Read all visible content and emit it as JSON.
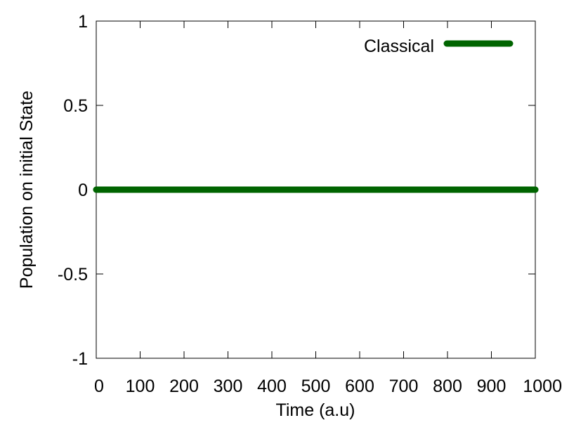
{
  "chart_data": {
    "type": "line",
    "title": "",
    "xlabel": "Time (a.u)",
    "ylabel": "Population on initial State",
    "xlim": [
      0,
      1000
    ],
    "ylim": [
      -1,
      1
    ],
    "xticks": [
      0,
      100,
      200,
      300,
      400,
      500,
      600,
      700,
      800,
      900,
      1000
    ],
    "xtick_labels": [
      "0",
      "100",
      "200",
      "300",
      "400",
      "500",
      "600",
      "700",
      "800",
      "900",
      "1000"
    ],
    "yticks": [
      1,
      0.5,
      0,
      -0.5,
      -1
    ],
    "ytick_labels": [
      "1",
      "0.5",
      "0",
      "-0.5",
      "-1"
    ],
    "grid": false,
    "legend_position": "top-right",
    "series": [
      {
        "name": "Classical",
        "color": "#006400",
        "x": [
          0,
          20,
          40,
          60,
          80,
          100,
          120,
          140,
          160,
          180,
          200,
          220,
          240,
          260,
          280,
          300,
          320,
          340,
          360,
          380,
          400,
          420,
          440,
          460,
          480,
          500,
          520,
          540,
          560,
          580,
          600,
          620,
          640,
          660,
          680,
          700,
          720,
          740,
          760,
          780,
          800,
          820,
          840,
          860,
          880,
          900,
          920,
          940,
          960,
          980,
          1000
        ],
        "y": [
          0,
          0,
          0,
          0,
          0,
          0,
          0,
          0,
          0,
          0,
          0,
          0,
          0,
          0,
          0,
          0,
          0,
          0,
          0,
          0,
          0,
          0,
          0,
          0,
          0,
          0,
          0,
          0,
          0,
          0,
          0,
          0,
          0,
          0,
          0,
          0,
          0,
          0,
          0,
          0,
          0,
          0,
          0,
          0,
          0,
          0,
          0,
          0,
          0,
          0,
          0
        ]
      }
    ]
  }
}
